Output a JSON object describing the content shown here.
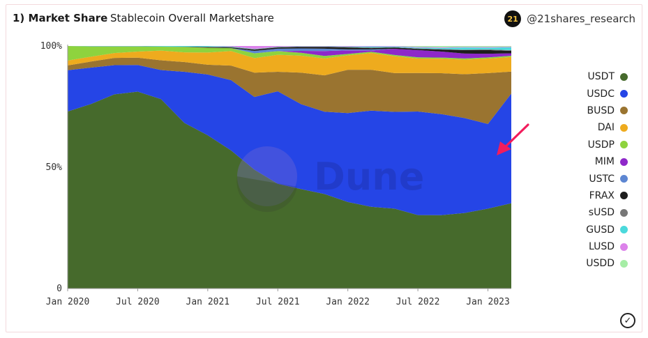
{
  "header": {
    "title": "1) Market Share",
    "subtitle": "Stablecoin Overall Marketshare",
    "brand_logo_text": "21",
    "brand": "@21shares_research"
  },
  "watermark": "Dune",
  "chart_data": {
    "type": "area",
    "stacked": true,
    "normalized": true,
    "title": "Stablecoin Overall Marketshare",
    "y_ticks": [
      "0",
      "50%",
      "100%"
    ],
    "x_ticks": [
      "Jan 2020",
      "Jul 2020",
      "Jan 2021",
      "Jul 2021",
      "Jan 2022",
      "Jul 2022",
      "Jan 2023"
    ],
    "x": [
      "Jan 2020",
      "Mar 2020",
      "May 2020",
      "Jul 2020",
      "Sep 2020",
      "Nov 2020",
      "Jan 2021",
      "Mar 2021",
      "May 2021",
      "Jul 2021",
      "Sep 2021",
      "Nov 2021",
      "Jan 2022",
      "Mar 2022",
      "May 2022",
      "Jul 2022",
      "Sep 2022",
      "Nov 2022",
      "Jan 2023",
      "Mar 2023"
    ],
    "ylim": [
      0,
      100
    ],
    "series": [
      {
        "name": "USDT",
        "color": "#466a2c",
        "values": [
          73,
          76,
          80,
          81,
          78,
          68,
          63,
          57,
          49,
          43,
          41,
          39,
          36,
          34,
          33,
          30.5,
          30.5,
          31,
          33,
          35
        ]
      },
      {
        "name": "USDC",
        "color": "#2545e6",
        "values": [
          17,
          15,
          12,
          11,
          12,
          21,
          25,
          29,
          30,
          38,
          35,
          34,
          37,
          40,
          40,
          43,
          42,
          39,
          35,
          45
        ]
      },
      {
        "name": "BUSD",
        "color": "#9a7430",
        "values": [
          2,
          2.5,
          3,
          3,
          4,
          4,
          4,
          6,
          10,
          8,
          13,
          15,
          18,
          17,
          16,
          16,
          17,
          18,
          21,
          9
        ]
      },
      {
        "name": "DAI",
        "color": "#eeab1e",
        "values": [
          2,
          2,
          2,
          2.5,
          4,
          4,
          5,
          6,
          6,
          7,
          7,
          7,
          6,
          7,
          7,
          6,
          6,
          6,
          6,
          6
        ]
      },
      {
        "name": "USDP",
        "color": "#8ed33e",
        "values": [
          6,
          4.2,
          2.7,
          2.1,
          1.6,
          2.2,
          2,
          1.2,
          2,
          1.5,
          1.2,
          1,
          0.6,
          0.5,
          0.5,
          0.5,
          0.5,
          0.5,
          0.5,
          0.5
        ]
      },
      {
        "name": "MIM",
        "color": "#8e28c9",
        "values": [
          0,
          0,
          0,
          0,
          0,
          0,
          0,
          0,
          0,
          0,
          0.8,
          2,
          1.5,
          0.5,
          2.5,
          3,
          2.5,
          2,
          1.5,
          1
        ]
      },
      {
        "name": "USTC",
        "color": "#5d86d2",
        "values": [
          0,
          0,
          0,
          0,
          0,
          0,
          0,
          0,
          1,
          1,
          1,
          1,
          0.4,
          0.5,
          0,
          0,
          0,
          0,
          0,
          0
        ]
      },
      {
        "name": "FRAX",
        "color": "#1e1e1e",
        "values": [
          0,
          0,
          0,
          0,
          0,
          0,
          0.2,
          0.3,
          0.5,
          0.5,
          0.6,
          0.7,
          0.8,
          0.5,
          0.6,
          0.5,
          0.8,
          1.4,
          1.5,
          1
        ]
      },
      {
        "name": "sUSD",
        "color": "#777777",
        "values": [
          0,
          0.1,
          0.1,
          0.1,
          0.1,
          0.1,
          0.2,
          0.2,
          0.2,
          0.2,
          0.2,
          0.2,
          0.2,
          0.3,
          0.1,
          0.2,
          0.2,
          0.2,
          0.3,
          0.3
        ]
      },
      {
        "name": "GUSD",
        "color": "#4bd9dc",
        "values": [
          0,
          0.1,
          0.1,
          0.1,
          0.2,
          0.3,
          0.3,
          0.2,
          0.1,
          0.1,
          0.1,
          0.1,
          0.2,
          0.4,
          0.3,
          0.3,
          0.5,
          0.9,
          0.7,
          1.2
        ]
      },
      {
        "name": "LUSD",
        "color": "#dc82ea",
        "values": [
          0,
          0,
          0,
          0,
          0,
          0,
          0,
          0.2,
          1.2,
          0.3,
          0.1,
          0.1,
          0.2,
          0.2,
          0.2,
          0.3,
          0.3,
          0.2,
          0.3,
          0.2
        ]
      },
      {
        "name": "USDD",
        "color": "#a6eda6",
        "values": [
          0,
          0,
          0,
          0,
          0,
          0,
          0,
          0,
          0,
          0,
          0,
          0,
          0,
          0,
          0,
          0.4,
          0.5,
          0.4,
          0.4,
          0.3
        ]
      }
    ],
    "legend_placement": "right",
    "annotation": "arrow pointing to the USDC band near Mar 2023"
  }
}
